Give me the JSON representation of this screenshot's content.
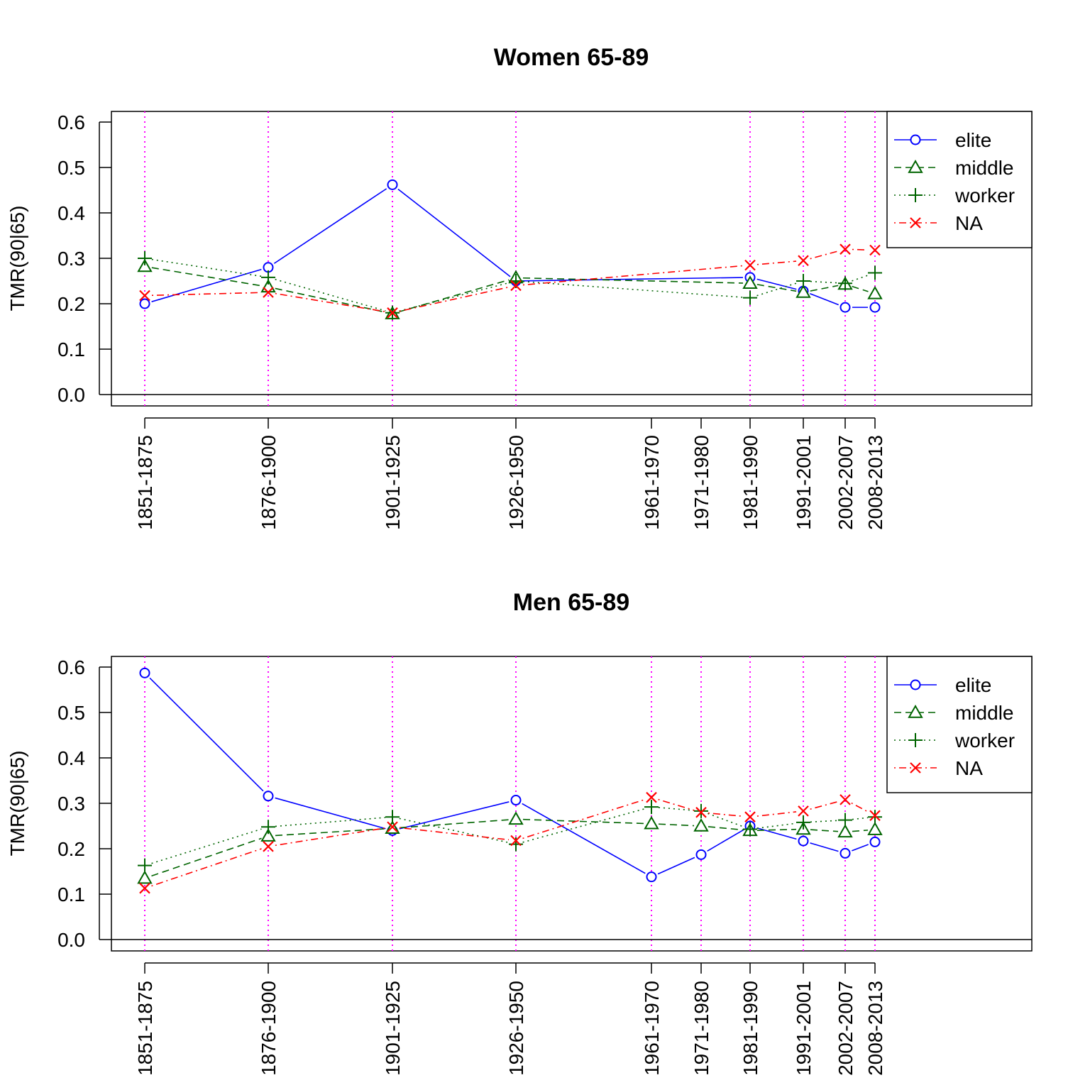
{
  "chart_data": [
    {
      "type": "line",
      "title": "Women 65-89",
      "ylabel": "TMR(90|65)",
      "xlabel": "",
      "ylim": [
        0,
        0.6
      ],
      "yticks": [
        "0.0",
        "0.1",
        "0.2",
        "0.3",
        "0.4",
        "0.5",
        "0.6"
      ],
      "categories": [
        "1851-1875",
        "1876-1900",
        "1901-1925",
        "1926-1950",
        "1961-1970",
        "1971-1980",
        "1981-1990",
        "1991-2001",
        "2002-2007",
        "2008-2013"
      ],
      "vlines_at": [
        "1851-1875",
        "1876-1900",
        "1901-1925",
        "1926-1950",
        "1981-1990",
        "1991-2001",
        "2002-2007",
        "2008-2013"
      ],
      "legend_position": "top-right",
      "series": [
        {
          "name": "elite",
          "color": "#0000ff",
          "marker": "circle",
          "dash": "solid",
          "values": [
            0.2,
            0.28,
            0.462,
            0.25,
            null,
            null,
            0.258,
            0.228,
            0.192,
            0.192
          ]
        },
        {
          "name": "middle",
          "color": "#006400",
          "marker": "triangle",
          "dash": "dashed",
          "values": [
            0.282,
            0.237,
            0.178,
            0.257,
            null,
            null,
            0.245,
            0.225,
            0.243,
            0.222
          ]
        },
        {
          "name": "worker",
          "color": "#006400",
          "marker": "plus",
          "dash": "dotted",
          "values": [
            0.3,
            0.258,
            0.18,
            0.25,
            null,
            null,
            0.213,
            0.25,
            0.245,
            0.268
          ]
        },
        {
          "name": "NA",
          "color": "#ff0000",
          "marker": "cross",
          "dash": "dotdash",
          "values": [
            0.218,
            0.225,
            0.18,
            0.24,
            null,
            null,
            0.285,
            0.295,
            0.32,
            0.318
          ]
        }
      ],
      "xtick_labels": [
        "1851-1875",
        "1876-1900",
        "1901-1925",
        "1926-1950",
        "1961-1970",
        "1971-1980",
        "1981-1990",
        "1991-2001",
        "2002-2007",
        "2008-2013"
      ]
    },
    {
      "type": "line",
      "title": "Men 65-89",
      "ylabel": "TMR(90|65)",
      "xlabel": "",
      "ylim": [
        0,
        0.6
      ],
      "yticks": [
        "0.0",
        "0.1",
        "0.2",
        "0.3",
        "0.4",
        "0.5",
        "0.6"
      ],
      "categories": [
        "1851-1875",
        "1876-1900",
        "1901-1925",
        "1926-1950",
        "1961-1970",
        "1971-1980",
        "1981-1990",
        "1991-2001",
        "2002-2007",
        "2008-2013"
      ],
      "vlines_at": [
        "1851-1875",
        "1876-1900",
        "1901-1925",
        "1926-1950",
        "1961-1970",
        "1971-1980",
        "1981-1990",
        "1991-2001",
        "2002-2007",
        "2008-2013"
      ],
      "legend_position": "top-right",
      "series": [
        {
          "name": "elite",
          "color": "#0000ff",
          "marker": "circle",
          "dash": "solid",
          "values": [
            0.587,
            0.316,
            0.24,
            0.307,
            0.138,
            0.187,
            0.25,
            0.217,
            0.19,
            0.215
          ]
        },
        {
          "name": "middle",
          "color": "#006400",
          "marker": "triangle",
          "dash": "dashed",
          "values": [
            0.135,
            0.228,
            0.245,
            0.265,
            0.255,
            0.25,
            0.24,
            0.243,
            0.237,
            0.242
          ]
        },
        {
          "name": "worker",
          "color": "#006400",
          "marker": "plus",
          "dash": "dotted",
          "values": [
            0.163,
            0.248,
            0.27,
            0.21,
            0.292,
            0.283,
            0.243,
            0.258,
            0.263,
            0.27
          ]
        },
        {
          "name": "NA",
          "color": "#ff0000",
          "marker": "cross",
          "dash": "dotdash",
          "values": [
            0.113,
            0.205,
            0.248,
            0.218,
            0.313,
            0.28,
            0.27,
            0.283,
            0.308,
            0.273
          ]
        }
      ],
      "xtick_labels": [
        "1851-1875",
        "1876-1900",
        "1901-1925",
        "1926-1950",
        "1961-1970",
        "1971-1980",
        "1981-1990",
        "1991-2001",
        "2002-2007",
        "2008-2013"
      ]
    }
  ]
}
